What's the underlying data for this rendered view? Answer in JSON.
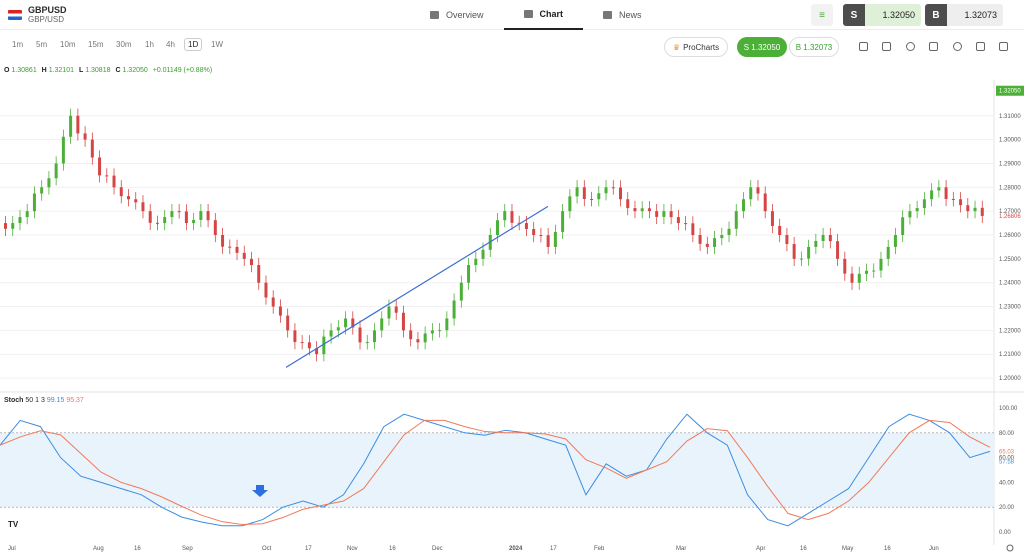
{
  "symbol": {
    "code": "GBPUSD",
    "name": "GBP/USD"
  },
  "nav": [
    {
      "label": "Overview"
    },
    {
      "label": "Chart"
    },
    {
      "label": "News"
    }
  ],
  "trade": {
    "sell_label": "S",
    "sell_price": "1.32050",
    "buy_label": "B",
    "buy_price": "1.32073"
  },
  "timeframes": [
    "1m",
    "5m",
    "10m",
    "15m",
    "30m",
    "1h",
    "4h",
    "1D",
    "1W"
  ],
  "active_timeframe": "1D",
  "prochart_label": "ProCharts",
  "sell_pill": "S 1.32050",
  "buy_pill": "B 1.32073",
  "ohlc": {
    "o_label": "O",
    "o": "1.30861",
    "h_label": "H",
    "h": "1.32101",
    "l_label": "L",
    "l": "1.30818",
    "c_label": "C",
    "c": "1.32050",
    "change": "+0.01149 (+0.88%)"
  },
  "stoch": {
    "label": "Stoch",
    "params": "50 1 3",
    "k": "99.15",
    "d": "95.37"
  },
  "price_axis": [
    "1.31000",
    "1.30000",
    "1.29000",
    "1.28000",
    "1.27000",
    "1.26000",
    "1.25000",
    "1.24000",
    "1.23000",
    "1.22000",
    "1.21000",
    "1.20000"
  ],
  "last_price_tag": "1.32050",
  "ref_price_tag": "1.26806",
  "stoch_axis": [
    "100.00",
    "80.00",
    "60.00",
    "40.00",
    "20.00",
    "0.00"
  ],
  "stoch_tags": [
    "65.03",
    "57.58"
  ],
  "time_axis": [
    "Jul",
    "Aug",
    "16",
    "Sep",
    "Oct",
    "17",
    "Nov",
    "16",
    "Dec",
    "2024",
    "17",
    "Feb",
    "Mar",
    "Apr",
    "16",
    "May",
    "16",
    "Jun"
  ],
  "colors": {
    "up": "#4caf37",
    "down": "#d64545",
    "k_line": "#3b8de0",
    "d_line": "#f07a5a",
    "band": "#e9f3fc"
  },
  "chart_data": {
    "type": "candlestick",
    "price_range": [
      1.195,
      1.325
    ],
    "stoch_range": [
      0,
      100
    ],
    "close_series_approx": [
      1.265,
      1.27,
      1.28,
      1.29,
      1.31,
      1.3,
      1.285,
      1.28,
      1.275,
      1.27,
      1.265,
      1.27,
      1.265,
      1.27,
      1.26,
      1.255,
      1.25,
      1.24,
      1.23,
      1.22,
      1.215,
      1.21,
      1.22,
      1.225,
      1.215,
      1.22,
      1.23,
      1.22,
      1.215,
      1.22,
      1.225,
      1.24,
      1.25,
      1.26,
      1.27,
      1.265,
      1.26,
      1.255,
      1.27,
      1.28,
      1.275,
      1.28,
      1.275,
      1.27,
      1.27,
      1.27,
      1.265,
      1.26,
      1.255,
      1.26,
      1.27,
      1.28,
      1.27,
      1.26,
      1.25,
      1.255,
      1.26,
      1.25,
      1.24,
      1.245,
      1.25,
      1.26,
      1.27,
      1.275,
      1.28,
      1.275,
      1.27,
      1.268
    ],
    "trendline": {
      "from": {
        "period": "Oct",
        "price": 1.2045
      },
      "to": {
        "period": "Jan",
        "price": 1.272
      }
    },
    "stoch_k_approx": [
      70,
      90,
      85,
      60,
      45,
      40,
      35,
      30,
      20,
      12,
      8,
      5,
      5,
      10,
      20,
      25,
      20,
      30,
      55,
      85,
      95,
      90,
      85,
      80,
      78,
      82,
      80,
      75,
      70,
      30,
      55,
      45,
      50,
      75,
      95,
      80,
      70,
      30,
      10,
      5,
      15,
      25,
      35,
      60,
      85,
      95,
      90,
      80,
      60,
      65
    ]
  }
}
